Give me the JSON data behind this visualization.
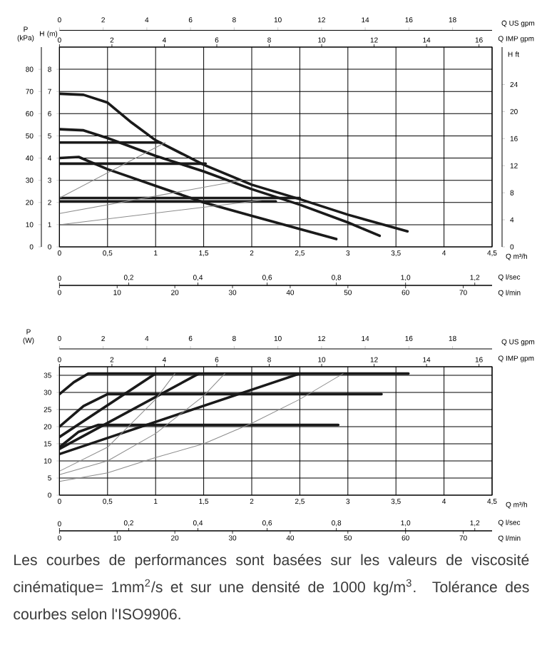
{
  "chart_data": [
    {
      "type": "line",
      "xlabel": "Q m³/h",
      "x2label": "Q US gpm",
      "ylabel": "P (kPa)",
      "y2label": "H (m)",
      "y3label": "H ft",
      "xlim": [
        0,
        4.5
      ],
      "xticks": [
        0,
        {
          "value": 0.5,
          "label": "0,5"
        },
        1,
        {
          "value": 1.5,
          "label": "1,5"
        },
        2,
        {
          "value": 2.5,
          "label": "2,5"
        },
        3,
        {
          "value": 3.5,
          "label": "3,5"
        },
        4,
        {
          "value": 4.5,
          "label": "4,5"
        }
      ],
      "x2lim": [
        0,
        19.81
      ],
      "x2ticks": [
        0,
        2,
        4,
        6,
        8,
        10,
        12,
        14,
        16,
        18
      ],
      "ylim": [
        0,
        90
      ],
      "yticks": [
        0,
        10,
        20,
        30,
        40,
        50,
        60,
        70,
        80
      ],
      "y2lim": [
        0,
        9
      ],
      "y2ticks": [
        0,
        1,
        2,
        3,
        4,
        5,
        6,
        7,
        8
      ],
      "y3lim": [
        0,
        29.53
      ],
      "y3ticks": [
        0,
        4,
        8,
        12,
        16,
        20,
        24
      ],
      "grid": true,
      "annotations": [
        "0",
        "2",
        "4",
        "6",
        "8",
        "10",
        "12",
        "14",
        "16",
        "Q IMP gpm",
        "0",
        "0,2",
        "0,4",
        "0,6",
        "0,8",
        "1,0",
        "1,2",
        "Q l/sec",
        "0",
        "10",
        "20",
        "30",
        "40",
        "50",
        "60",
        "70",
        "Q l/min"
      ],
      "series": [
        {
          "color": "#1a1a1a",
          "x": [
            0,
            0.25,
            0.5,
            0.75,
            1.0,
            1.5,
            2.0,
            2.5,
            3.0,
            3.62
          ],
          "values": [
            69,
            68.5,
            65,
            56,
            48,
            37,
            28,
            21.5,
            14.5,
            7
          ]
        },
        {
          "color": "#1a1a1a",
          "x": [
            0,
            0.25,
            0.5,
            1.0,
            1.5,
            2.0,
            2.5,
            3.0,
            3.33
          ],
          "values": [
            53,
            52.5,
            49,
            41,
            34,
            26,
            19,
            11,
            5
          ]
        },
        {
          "color": "#1a1a1a",
          "x": [
            0,
            0.2,
            0.5,
            1.0,
            1.5,
            2.0,
            2.5,
            2.88
          ],
          "values": [
            40,
            40.5,
            35,
            27.5,
            20,
            14,
            8,
            3.5
          ]
        },
        {
          "color": "#1a1a1a",
          "x": [
            0,
            1.05
          ],
          "values": [
            47,
            47
          ]
        },
        {
          "color": "#1a1a1a",
          "x": [
            0,
            1.52
          ],
          "values": [
            37.5,
            37.5
          ]
        },
        {
          "color": "#1a1a1a",
          "x": [
            0,
            2.5
          ],
          "values": [
            22,
            22
          ]
        },
        {
          "color": "#1a1a1a",
          "x": [
            0,
            2.25
          ],
          "values": [
            20.5,
            20.5
          ]
        },
        {
          "color": "#8c8c8c",
          "x": [
            0,
            1.1
          ],
          "values": [
            22,
            47
          ]
        },
        {
          "color": "#8c8c8c",
          "x": [
            0,
            1.9
          ],
          "values": [
            15,
            30
          ]
        },
        {
          "color": "#8c8c8c",
          "x": [
            0,
            2.1
          ],
          "values": [
            10,
            21
          ]
        }
      ]
    },
    {
      "type": "line",
      "xlabel": "Q m³/h",
      "x2label": "Q US gpm",
      "ylabel": "P (W)",
      "xlim": [
        0,
        4.5
      ],
      "xticks": [
        0,
        {
          "value": 0.5,
          "label": "0,5"
        },
        1,
        {
          "value": 1.5,
          "label": "1,5"
        },
        2,
        {
          "value": 2.5,
          "label": "2,5"
        },
        3,
        {
          "value": 3.5,
          "label": "3,5"
        },
        4,
        {
          "value": 4.5,
          "label": "4,5"
        }
      ],
      "x2lim": [
        0,
        19.81
      ],
      "x2ticks": [
        0,
        2,
        4,
        6,
        8,
        10,
        12,
        14,
        16,
        18
      ],
      "ylim": [
        0,
        37.5
      ],
      "yticks": [
        0,
        5,
        10,
        15,
        20,
        25,
        30,
        35
      ],
      "grid": true,
      "annotations": [
        "0",
        "2",
        "4",
        "6",
        "8",
        "10",
        "12",
        "14",
        "16",
        "Q IMP gpm",
        "0",
        "0,2",
        "0,4",
        "0,6",
        "0,8",
        "1,0",
        "1,2",
        "Q l/sec",
        "0",
        "10",
        "20",
        "30",
        "40",
        "50",
        "60",
        "70",
        "Q l/min",
        "Les courbes de performances sont basées sur les valeurs de viscosité cinématique= 1mm$^{2}$/s et sur une densité de 1000 kg/m$^{3}$. Tolérance des courbes selon l'ISO9906."
      ],
      "series": [
        {
          "color": "#1a1a1a",
          "x": [
            0,
            0.15,
            0.3,
            3.63
          ],
          "values": [
            29.5,
            33,
            35.5,
            35.5
          ]
        },
        {
          "color": "#1a1a1a",
          "x": [
            0,
            0.25,
            0.5,
            3.35
          ],
          "values": [
            20,
            26,
            29.5,
            29.5
          ]
        },
        {
          "color": "#1a1a1a",
          "x": [
            0,
            0.2,
            0.4,
            2.9
          ],
          "values": [
            14,
            18.5,
            20.5,
            20.5
          ]
        },
        {
          "color": "#1a1a1a",
          "x": [
            0,
            1.0
          ],
          "values": [
            17,
            35.5
          ]
        },
        {
          "color": "#1a1a1a",
          "x": [
            0,
            1.45
          ],
          "values": [
            13.5,
            35.5
          ]
        },
        {
          "color": "#1a1a1a",
          "x": [
            0,
            2.5
          ],
          "values": [
            12,
            35.5
          ]
        },
        {
          "color": "#8c8c8c",
          "x": [
            0,
            0.5,
            1.0,
            1.2
          ],
          "values": [
            7,
            14,
            28,
            35.5
          ]
        },
        {
          "color": "#8c8c8c",
          "x": [
            0,
            0.5,
            1.0,
            1.5,
            1.72
          ],
          "values": [
            6,
            10,
            18,
            29,
            35.5
          ]
        },
        {
          "color": "#8c8c8c",
          "x": [
            0,
            0.5,
            1.0,
            1.5,
            2.0,
            2.5,
            2.95
          ],
          "values": [
            4,
            6.5,
            11,
            15,
            21,
            28,
            35.5
          ]
        }
      ]
    }
  ]
}
